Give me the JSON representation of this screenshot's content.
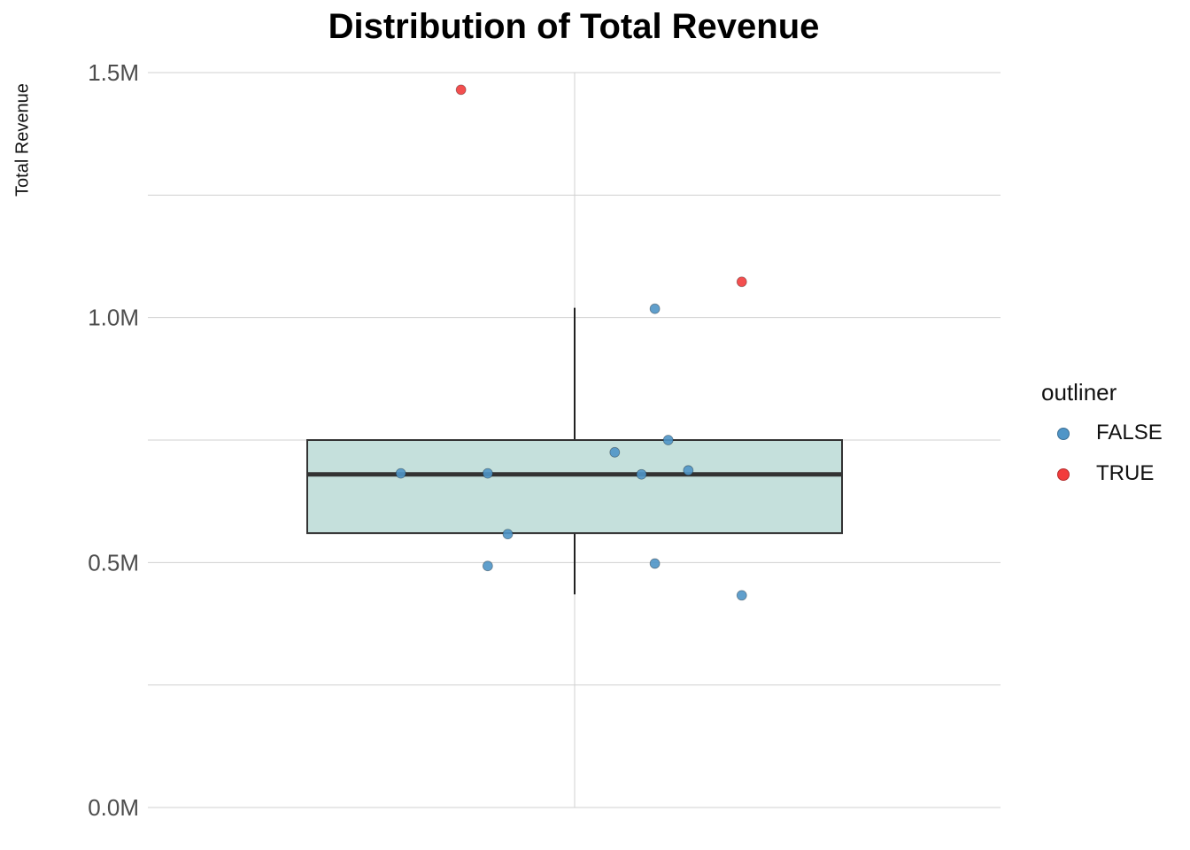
{
  "chart_data": {
    "type": "boxplot",
    "title": "Distribution of Total Revenue",
    "xlabel": "",
    "ylabel": "Total Revenue",
    "ylim": [
      0,
      1500000
    ],
    "y_ticks": [
      0,
      250000,
      500000,
      750000,
      1000000,
      1250000,
      1500000
    ],
    "y_tick_labels": {
      "0": "0.0M",
      "500000": "0.5M",
      "1000000": "1.0M",
      "1500000": "1.5M"
    },
    "grid": true,
    "box": {
      "q1": 560000,
      "median": 680000,
      "q3": 750000,
      "whisker_low": 435000,
      "whisker_high": 1020000,
      "fill": "#c5e0dc",
      "stroke": "#333333"
    },
    "legend": {
      "title": "outliner",
      "placement": "right",
      "entries": [
        {
          "label": "FALSE",
          "color": "#4f95c7"
        },
        {
          "label": "TRUE",
          "color": "#f23c3c"
        }
      ]
    },
    "series": [
      {
        "name": "FALSE",
        "color": "#4f95c7",
        "points": [
          {
            "jitter": 0.12,
            "y": 1018000
          },
          {
            "jitter": 0.14,
            "y": 750000
          },
          {
            "jitter": 0.06,
            "y": 725000
          },
          {
            "jitter": 0.17,
            "y": 688000
          },
          {
            "jitter": -0.26,
            "y": 682000
          },
          {
            "jitter": -0.13,
            "y": 682000
          },
          {
            "jitter": 0.1,
            "y": 680000
          },
          {
            "jitter": -0.1,
            "y": 558000
          },
          {
            "jitter": 0.12,
            "y": 498000
          },
          {
            "jitter": -0.13,
            "y": 493000
          },
          {
            "jitter": 0.25,
            "y": 433000
          }
        ]
      },
      {
        "name": "TRUE",
        "color": "#f23c3c",
        "points": [
          {
            "jitter": -0.17,
            "y": 1465000
          },
          {
            "jitter": 0.25,
            "y": 1073000
          }
        ]
      }
    ]
  }
}
